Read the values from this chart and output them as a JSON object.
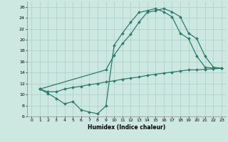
{
  "xlabel": "Humidex (Indice chaleur)",
  "bg_color": "#cce8e0",
  "grid_color": "#aacfc8",
  "line_color": "#2d7a6e",
  "xlim": [
    -0.5,
    23.5
  ],
  "ylim": [
    6,
    27
  ],
  "xticks": [
    0,
    1,
    2,
    3,
    4,
    5,
    6,
    7,
    8,
    9,
    10,
    11,
    12,
    13,
    14,
    15,
    16,
    17,
    18,
    19,
    20,
    21,
    22,
    23
  ],
  "yticks": [
    6,
    8,
    10,
    12,
    14,
    16,
    18,
    20,
    22,
    24,
    26
  ],
  "line1_x": [
    1,
    2,
    3,
    4,
    5,
    6,
    7,
    8,
    9,
    10,
    11,
    12,
    13,
    14,
    15,
    16,
    17,
    18,
    19,
    20,
    21,
    22,
    23
  ],
  "line1_y": [
    11.0,
    10.2,
    9.3,
    8.3,
    8.7,
    7.2,
    6.8,
    6.5,
    7.9,
    19.0,
    21.2,
    23.2,
    25.0,
    25.3,
    25.7,
    25.1,
    24.2,
    21.2,
    20.2,
    17.0,
    15.0,
    14.8,
    14.8
  ],
  "line2_x": [
    1,
    9,
    10,
    11,
    12,
    13,
    14,
    15,
    16,
    17,
    18,
    19,
    20,
    21,
    22,
    23
  ],
  "line2_y": [
    11.0,
    14.5,
    17.2,
    19.3,
    21.0,
    23.2,
    25.0,
    25.3,
    25.7,
    25.1,
    24.2,
    21.2,
    20.2,
    17.0,
    15.0,
    14.8
  ],
  "line3_x": [
    1,
    2,
    3,
    4,
    5,
    6,
    7,
    8,
    9,
    10,
    11,
    12,
    13,
    14,
    15,
    16,
    17,
    18,
    19,
    20,
    21,
    22,
    23
  ],
  "line3_y": [
    11.0,
    10.5,
    10.5,
    11.0,
    11.3,
    11.5,
    11.8,
    12.0,
    12.3,
    12.5,
    12.8,
    13.0,
    13.2,
    13.5,
    13.7,
    13.9,
    14.1,
    14.3,
    14.5,
    14.5,
    14.6,
    14.7,
    14.8
  ]
}
